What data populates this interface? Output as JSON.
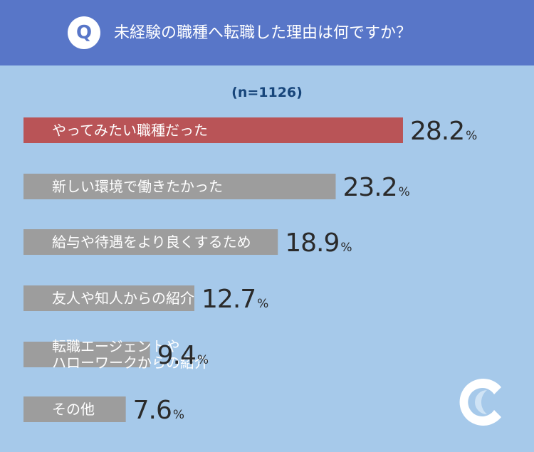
{
  "header": {
    "badge": "Q",
    "question": "未経験の職種へ転職した理由は何ですか？"
  },
  "sample_size": "(n=1126)",
  "colors": {
    "header_bg": "#5876c8",
    "background": "#a6c9ea",
    "highlight_bar": "#b95457",
    "default_bar": "#9d9d9d",
    "bar_text": "#ffffff",
    "value_text": "#2a2a2a"
  },
  "chart_data": {
    "type": "bar",
    "orientation": "horizontal",
    "unit": "%",
    "categories": [
      [
        "やってみたい職種だった"
      ],
      [
        "新しい環境で働きたかった"
      ],
      [
        "給与や待遇をより良くするため"
      ],
      [
        "友人や知人からの紹介"
      ],
      [
        "転職エージェントや",
        "ハローワークからの紹介"
      ],
      [
        "その他"
      ]
    ],
    "values": [
      28.2,
      23.2,
      18.9,
      12.7,
      9.4,
      7.6
    ],
    "value_labels": [
      "28.2",
      "23.2",
      "18.9",
      "12.7",
      "9.4",
      "7.6"
    ],
    "highlight_index": 0
  },
  "logo": {
    "icon": "crescent-c-icon"
  }
}
